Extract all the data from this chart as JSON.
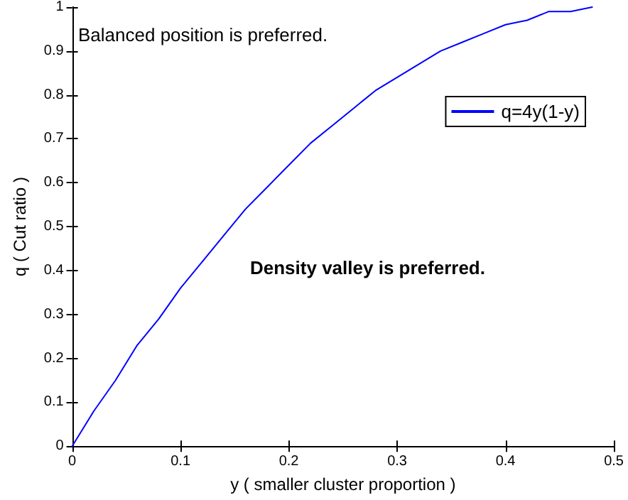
{
  "chart_data": {
    "type": "line",
    "xlabel": "y ( smaller cluster proportion )",
    "ylabel": "q ( Cut ratio )",
    "annotations": [
      "Balanced position is preferred.",
      "Density valley is preferred."
    ],
    "x": [
      0,
      0.02,
      0.04,
      0.06,
      0.08,
      0.1,
      0.12,
      0.14,
      0.16,
      0.18,
      0.2,
      0.22,
      0.24,
      0.26,
      0.28,
      0.3,
      0.32,
      0.34,
      0.36,
      0.38,
      0.4,
      0.42,
      0.44,
      0.46,
      0.48
    ],
    "series": [
      {
        "name": "q=4y(1-y)",
        "color": "#0000ff",
        "values": [
          0,
          0.08,
          0.15,
          0.23,
          0.29,
          0.36,
          0.42,
          0.48,
          0.54,
          0.59,
          0.64,
          0.69,
          0.73,
          0.77,
          0.81,
          0.84,
          0.87,
          0.9,
          0.92,
          0.94,
          0.96,
          0.97,
          0.99,
          0.99,
          1
        ]
      }
    ],
    "xlim": [
      0,
      0.5
    ],
    "xticks": [
      0,
      0.1,
      0.2,
      0.3,
      0.4,
      0.5
    ],
    "ylim": [
      0,
      1
    ],
    "yticks": [
      0,
      0.1,
      0.2,
      0.3,
      0.4,
      0.5,
      0.6,
      0.7,
      0.8,
      0.9,
      1
    ],
    "grid": false,
    "legend": "top right",
    "marker": "none",
    "line_style": "solid"
  }
}
